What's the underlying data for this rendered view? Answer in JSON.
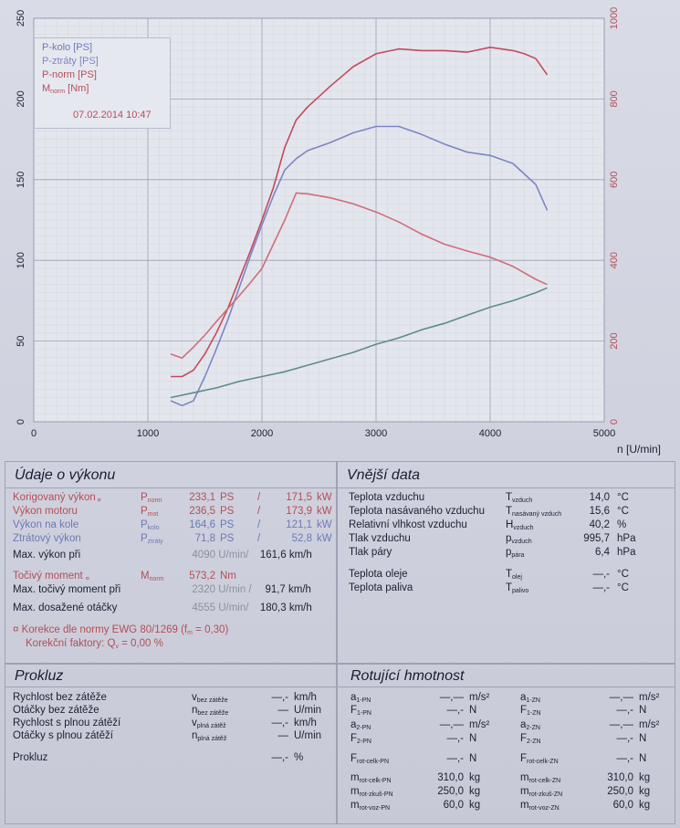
{
  "chart_data": {
    "type": "line",
    "x_axis": {
      "label": "n [U/min]",
      "range": [
        0,
        5000
      ],
      "ticks": [
        "0",
        "1000",
        "2000",
        "3000",
        "4000",
        "5000"
      ]
    },
    "y_axis_left": {
      "range": [
        0,
        250
      ],
      "ticks": [
        "0",
        "50",
        "100",
        "150",
        "200",
        "250"
      ]
    },
    "y_axis_right": {
      "range": [
        0,
        1000
      ],
      "ticks": [
        "0",
        "200",
        "400",
        "600",
        "800",
        "1000"
      ]
    },
    "grid": true,
    "legend_position": "top-left",
    "legend_date": "07.02.2014 10:47",
    "series": [
      {
        "name": "P-kolo [PS]",
        "color": "#7c86c4",
        "axis": "left",
        "points": [
          [
            1200,
            13
          ],
          [
            1300,
            10
          ],
          [
            1400,
            13
          ],
          [
            1500,
            28
          ],
          [
            1600,
            45
          ],
          [
            1700,
            63
          ],
          [
            1800,
            83
          ],
          [
            1900,
            103
          ],
          [
            2000,
            122
          ],
          [
            2100,
            140
          ],
          [
            2200,
            156
          ],
          [
            2300,
            163
          ],
          [
            2400,
            168
          ],
          [
            2600,
            173
          ],
          [
            2800,
            179
          ],
          [
            3000,
            183
          ],
          [
            3200,
            183
          ],
          [
            3400,
            178
          ],
          [
            3600,
            172
          ],
          [
            3800,
            167
          ],
          [
            4000,
            165
          ],
          [
            4200,
            160
          ],
          [
            4400,
            147
          ],
          [
            4500,
            131
          ]
        ]
      },
      {
        "name": "P-ztráty [PS]",
        "color": "#5f8c84",
        "axis": "left",
        "points": [
          [
            1200,
            15
          ],
          [
            1400,
            18
          ],
          [
            1600,
            21
          ],
          [
            1800,
            25
          ],
          [
            2000,
            28
          ],
          [
            2200,
            31
          ],
          [
            2400,
            35
          ],
          [
            2600,
            39
          ],
          [
            2800,
            43
          ],
          [
            3000,
            48
          ],
          [
            3200,
            52
          ],
          [
            3400,
            57
          ],
          [
            3600,
            61
          ],
          [
            3800,
            66
          ],
          [
            4000,
            71
          ],
          [
            4200,
            75
          ],
          [
            4400,
            80
          ],
          [
            4500,
            83
          ]
        ]
      },
      {
        "name": "P-norm [PS]",
        "color": "#c44a5a",
        "axis": "left",
        "points": [
          [
            1200,
            28
          ],
          [
            1300,
            28
          ],
          [
            1400,
            32
          ],
          [
            1500,
            42
          ],
          [
            1600,
            55
          ],
          [
            1700,
            70
          ],
          [
            1800,
            88
          ],
          [
            1900,
            106
          ],
          [
            2000,
            125
          ],
          [
            2100,
            145
          ],
          [
            2200,
            170
          ],
          [
            2300,
            187
          ],
          [
            2400,
            195
          ],
          [
            2600,
            208
          ],
          [
            2800,
            220
          ],
          [
            3000,
            228
          ],
          [
            3200,
            231
          ],
          [
            3400,
            230
          ],
          [
            3600,
            230
          ],
          [
            3800,
            229
          ],
          [
            4000,
            232
          ],
          [
            4200,
            230
          ],
          [
            4300,
            228
          ],
          [
            4400,
            225
          ],
          [
            4500,
            215
          ]
        ]
      },
      {
        "name": "M_norm [Nm]",
        "color": "#d06d78",
        "axis": "right",
        "points": [
          [
            1200,
            168
          ],
          [
            1300,
            158
          ],
          [
            1400,
            185
          ],
          [
            1500,
            215
          ],
          [
            1600,
            248
          ],
          [
            1700,
            280
          ],
          [
            1800,
            312
          ],
          [
            1900,
            345
          ],
          [
            2000,
            380
          ],
          [
            2100,
            440
          ],
          [
            2200,
            500
          ],
          [
            2300,
            567
          ],
          [
            2400,
            565
          ],
          [
            2600,
            555
          ],
          [
            2800,
            540
          ],
          [
            3000,
            520
          ],
          [
            3200,
            495
          ],
          [
            3400,
            465
          ],
          [
            3600,
            440
          ],
          [
            3800,
            423
          ],
          [
            4000,
            408
          ],
          [
            4200,
            385
          ],
          [
            4400,
            353
          ],
          [
            4500,
            340
          ]
        ]
      }
    ]
  },
  "legend": {
    "p_kolo": "P-kolo [PS]",
    "p_ztraty": "P-ztráty [PS]",
    "p_norm": "P-norm [PS]",
    "m_norm_main": "M",
    "m_norm_sub": "norm",
    "m_norm_unit": " [Nm]",
    "date": "07.02.2014 10:47"
  },
  "vykon": {
    "title": "Údaje o výkonu",
    "rows": [
      {
        "label": "Korigovaný výkon",
        "mark": "¤",
        "sym": "P",
        "sub": "norm",
        "v1": "233,1",
        "u1": "PS",
        "sep": "/",
        "v2": "171,5",
        "u2": "kW"
      },
      {
        "label": "Výkon motoru",
        "mark": "",
        "sym": "P",
        "sub": "mot",
        "v1": "236,5",
        "u1": "PS",
        "sep": "/",
        "v2": "173,9",
        "u2": "kW"
      },
      {
        "label": "Výkon na kole",
        "mark": "",
        "sym": "P",
        "sub": "kolo",
        "v1": "164,6",
        "u1": "PS",
        "sep": "/",
        "v2": "121,1",
        "u2": "kW"
      },
      {
        "label": "Ztrátový výkon",
        "mark": "",
        "sym": "P",
        "sub": "ztráty",
        "v1": "71,8",
        "u1": "PS",
        "sep": "/",
        "v2": "52,8",
        "u2": "kW"
      }
    ],
    "max_vykon_label": "Max. výkon při",
    "max_vykon_rpm": "4090",
    "max_vykon_rpm_unit": "U/min/",
    "max_vykon_speed": "161,6",
    "speed_unit": "km/h",
    "moment_label": "Točivý moment",
    "moment_mark": "¤",
    "moment_sym": "M",
    "moment_sub": "norm",
    "moment_value": "573,2",
    "moment_unit": "Nm",
    "max_moment_label": "Max. točivý moment při",
    "max_moment_rpm": "2320",
    "max_moment_rpm_unit": "U/min /",
    "max_moment_speed": "91,7",
    "max_otacky_label": "Max. dosažené otáčky",
    "max_otacky_rpm": "4555",
    "max_otacky_rpm_unit": "U/min/",
    "max_otacky_speed": "180,3",
    "korekce_text": "¤ Korekce dle normy EWG 80/1269 (f",
    "korekce_sub": "m",
    "korekce_tail": " = 0,30)",
    "faktory_text": "Korekční faktory: Q",
    "faktory_sub": "v",
    "faktory_value": " =   0,00 %"
  },
  "vnejsi": {
    "title": "Vnější data",
    "rows": [
      {
        "label": "Teplota vzduchu",
        "sym": "T",
        "sub": "vzduch",
        "value": "14,0",
        "unit": "°C"
      },
      {
        "label": "Teplota nasávaného vzduchu",
        "sym": "T",
        "sub": "nasávaný vzduch",
        "value": "15,6",
        "unit": "°C"
      },
      {
        "label": "Relativní vlhkost vzduchu",
        "sym": "H",
        "sub": "vzduch",
        "value": "40,2",
        "unit": "%"
      },
      {
        "label": "Tlak vzduchu",
        "sym": "p",
        "sub": "vzduch",
        "value": "995,7",
        "unit": "hPa"
      },
      {
        "label": "Tlak páry",
        "sym": "p",
        "sub": "pára",
        "value": "6,4",
        "unit": "hPa"
      },
      {
        "label": "Teplota oleje",
        "sym": "T",
        "sub": "olej",
        "value": "—,-",
        "unit": "°C"
      },
      {
        "label": "Teplota paliva",
        "sym": "T",
        "sub": "palivo",
        "value": "—,-",
        "unit": "°C"
      }
    ]
  },
  "prokluz": {
    "title": "Prokluz",
    "rows": [
      {
        "label": "Rychlost bez zátěže",
        "sym": "v",
        "sub": "bez zátěže",
        "value": "—,-",
        "unit": "km/h"
      },
      {
        "label": "Otáčky bez zátěže",
        "sym": "n",
        "sub": "bez zátěže",
        "value": "—",
        "unit": "U/min"
      },
      {
        "label": "Rychlost s plnou zátěží",
        "sym": "v",
        "sub": "plná zátěž",
        "value": "—,-",
        "unit": "km/h"
      },
      {
        "label": "Otáčky s plnou zátěží",
        "sym": "n",
        "sub": "plná zátěž",
        "value": "—",
        "unit": "U/min"
      },
      {
        "label": "Prokluz",
        "sym": "",
        "sub": "",
        "value": "—,-",
        "unit": "%"
      }
    ]
  },
  "rotujici": {
    "title": "Rotující hmotnost",
    "left": [
      {
        "sym": "a",
        "sub": "1-PN",
        "value": "—,—",
        "unit": "m/s²"
      },
      {
        "sym": "F",
        "sub": "1-PN",
        "value": "—,-",
        "unit": "N"
      },
      {
        "sym": "a",
        "sub": "2-PN",
        "value": "—,—",
        "unit": "m/s²"
      },
      {
        "sym": "F",
        "sub": "2-PN",
        "value": "—,-",
        "unit": "N"
      },
      {
        "sym": "F",
        "sub": "rot-celk-PN",
        "value": "—,-",
        "unit": "N"
      },
      {
        "sym": "m",
        "sub": "rot-celk-PN",
        "value": "310,0",
        "unit": "kg"
      },
      {
        "sym": "m",
        "sub": "rot-zkuš-PN",
        "value": "250,0",
        "unit": "kg"
      },
      {
        "sym": "m",
        "sub": "rot-voz-PN",
        "value": "60,0",
        "unit": "kg"
      }
    ],
    "right": [
      {
        "sym": "a",
        "sub": "1-ZN",
        "value": "—,—",
        "unit": "m/s²"
      },
      {
        "sym": "F",
        "sub": "1-ZN",
        "value": "—,-",
        "unit": "N"
      },
      {
        "sym": "a",
        "sub": "2-ZN",
        "value": "—,—",
        "unit": "m/s²"
      },
      {
        "sym": "F",
        "sub": "2-ZN",
        "value": "—,-",
        "unit": "N"
      },
      {
        "sym": "F",
        "sub": "rot-celk-ZN",
        "value": "—,-",
        "unit": "N"
      },
      {
        "sym": "m",
        "sub": "rot-celk-ZN",
        "value": "310,0",
        "unit": "kg"
      },
      {
        "sym": "m",
        "sub": "rot-zkuš-ZN",
        "value": "250,0",
        "unit": "kg"
      },
      {
        "sym": "m",
        "sub": "rot-voz-ZN",
        "value": "60,0",
        "unit": "kg"
      }
    ]
  }
}
